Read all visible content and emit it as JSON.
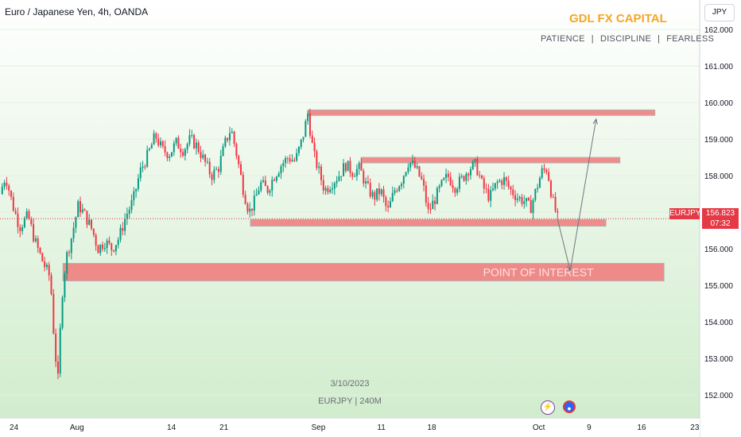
{
  "header": {
    "title": "Euro / Japanese Yen, 4h, OANDA",
    "currency_button": "JPY"
  },
  "brand": {
    "name": "GDL FX CAPITAL",
    "tagline": [
      "PATIENCE",
      "DISCIPLINE",
      "FEARLESS"
    ],
    "tagline_sep": "|"
  },
  "watermark": {
    "date": "3/10/2023",
    "symbol_line": "EURJPY | 240M"
  },
  "last_price": {
    "symbol": "EURJPY",
    "price": "156.823",
    "countdown": "07:32",
    "value": 156.823
  },
  "icons": {
    "events": "lightning-icon",
    "country": "globe-flag-icon"
  },
  "colors": {
    "bull": "#089981",
    "bear": "#f23645",
    "zone_fill": "#f08080",
    "zone_text": "#ffffff",
    "brand": "#f5a623",
    "last_price": "#e53945"
  },
  "chart_data": {
    "type": "candlestick",
    "timeframe": "4h",
    "symbol": "EURJPY",
    "y_range": [
      151.5,
      162.2
    ],
    "y_ticks": [
      152,
      153,
      154,
      155,
      156,
      157,
      158,
      159,
      160,
      161,
      162
    ],
    "y_tick_labels": [
      "152.000",
      "153.000",
      "154.000",
      "155.000",
      "156.000",
      "157.000",
      "158.000",
      "159.000",
      "160.000",
      "161.000",
      "162.000"
    ],
    "x_ticks": [
      {
        "label": "24",
        "frac": 0.02
      },
      {
        "label": "Aug",
        "frac": 0.11
      },
      {
        "label": "14",
        "frac": 0.245
      },
      {
        "label": "21",
        "frac": 0.32
      },
      {
        "label": "Sep",
        "frac": 0.455
      },
      {
        "label": "11",
        "frac": 0.545
      },
      {
        "label": "18",
        "frac": 0.617
      },
      {
        "label": "Oct",
        "frac": 0.77
      },
      {
        "label": "9",
        "frac": 0.842
      },
      {
        "label": "16",
        "frac": 0.917
      },
      {
        "label": "23",
        "frac": 0.993
      }
    ],
    "path": [
      [
        0.0,
        157.5
      ],
      [
        0.008,
        158.0
      ],
      [
        0.018,
        157.2
      ],
      [
        0.028,
        156.6
      ],
      [
        0.04,
        156.9
      ],
      [
        0.05,
        156.2
      ],
      [
        0.062,
        155.6
      ],
      [
        0.072,
        155.2
      ],
      [
        0.078,
        153.3
      ],
      [
        0.083,
        152.4
      ],
      [
        0.088,
        154.6
      ],
      [
        0.094,
        155.7
      ],
      [
        0.102,
        156.3
      ],
      [
        0.112,
        157.2
      ],
      [
        0.122,
        156.9
      ],
      [
        0.132,
        156.5
      ],
      [
        0.14,
        156.0
      ],
      [
        0.15,
        156.2
      ],
      [
        0.16,
        156.0
      ],
      [
        0.17,
        156.3
      ],
      [
        0.18,
        156.9
      ],
      [
        0.19,
        157.3
      ],
      [
        0.2,
        158.1
      ],
      [
        0.212,
        158.6
      ],
      [
        0.222,
        159.1
      ],
      [
        0.232,
        158.7
      ],
      [
        0.242,
        158.6
      ],
      [
        0.252,
        158.9
      ],
      [
        0.262,
        158.7
      ],
      [
        0.272,
        159.0
      ],
      [
        0.282,
        158.8
      ],
      [
        0.292,
        158.4
      ],
      [
        0.302,
        158.0
      ],
      [
        0.312,
        158.2
      ],
      [
        0.322,
        158.9
      ],
      [
        0.33,
        159.3
      ],
      [
        0.338,
        158.6
      ],
      [
        0.348,
        157.6
      ],
      [
        0.356,
        157.0
      ],
      [
        0.364,
        157.3
      ],
      [
        0.372,
        157.8
      ],
      [
        0.382,
        157.6
      ],
      [
        0.392,
        158.0
      ],
      [
        0.402,
        158.3
      ],
      [
        0.412,
        158.5
      ],
      [
        0.422,
        158.4
      ],
      [
        0.432,
        159.0
      ],
      [
        0.44,
        159.7
      ],
      [
        0.448,
        158.6
      ],
      [
        0.456,
        158.1
      ],
      [
        0.464,
        157.6
      ],
      [
        0.474,
        157.8
      ],
      [
        0.484,
        158.0
      ],
      [
        0.494,
        158.3
      ],
      [
        0.504,
        158.1
      ],
      [
        0.514,
        158.2
      ],
      [
        0.524,
        157.7
      ],
      [
        0.534,
        157.4
      ],
      [
        0.544,
        157.6
      ],
      [
        0.554,
        157.0
      ],
      [
        0.564,
        157.6
      ],
      [
        0.574,
        157.9
      ],
      [
        0.584,
        158.4
      ],
      [
        0.594,
        158.2
      ],
      [
        0.604,
        157.8
      ],
      [
        0.612,
        157.0
      ],
      [
        0.62,
        157.3
      ],
      [
        0.63,
        157.7
      ],
      [
        0.64,
        158.0
      ],
      [
        0.65,
        157.7
      ],
      [
        0.66,
        157.9
      ],
      [
        0.67,
        158.2
      ],
      [
        0.68,
        158.3
      ],
      [
        0.69,
        157.7
      ],
      [
        0.7,
        157.4
      ],
      [
        0.71,
        157.8
      ],
      [
        0.72,
        157.9
      ],
      [
        0.73,
        157.6
      ],
      [
        0.74,
        157.4
      ],
      [
        0.75,
        157.3
      ],
      [
        0.758,
        157.1
      ],
      [
        0.766,
        157.6
      ],
      [
        0.774,
        158.1
      ],
      [
        0.782,
        158.2
      ],
      [
        0.79,
        157.3
      ],
      [
        0.797,
        156.82
      ]
    ],
    "price_line": 156.823,
    "zones": [
      {
        "y_top": 159.8,
        "y_bottom": 159.65,
        "x_start": 0.44,
        "x_end": 0.936,
        "label": ""
      },
      {
        "y_top": 158.5,
        "y_bottom": 158.35,
        "x_start": 0.516,
        "x_end": 0.886,
        "label": ""
      },
      {
        "y_top": 156.8,
        "y_bottom": 156.62,
        "x_start": 0.358,
        "x_end": 0.866,
        "label": ""
      },
      {
        "y_top": 155.6,
        "y_bottom": 155.12,
        "x_start": 0.09,
        "x_end": 0.949,
        "label": "POINT OF INTEREST"
      }
    ],
    "projection": [
      [
        0.797,
        156.8
      ],
      [
        0.815,
        155.4
      ],
      [
        0.852,
        159.55
      ]
    ]
  }
}
